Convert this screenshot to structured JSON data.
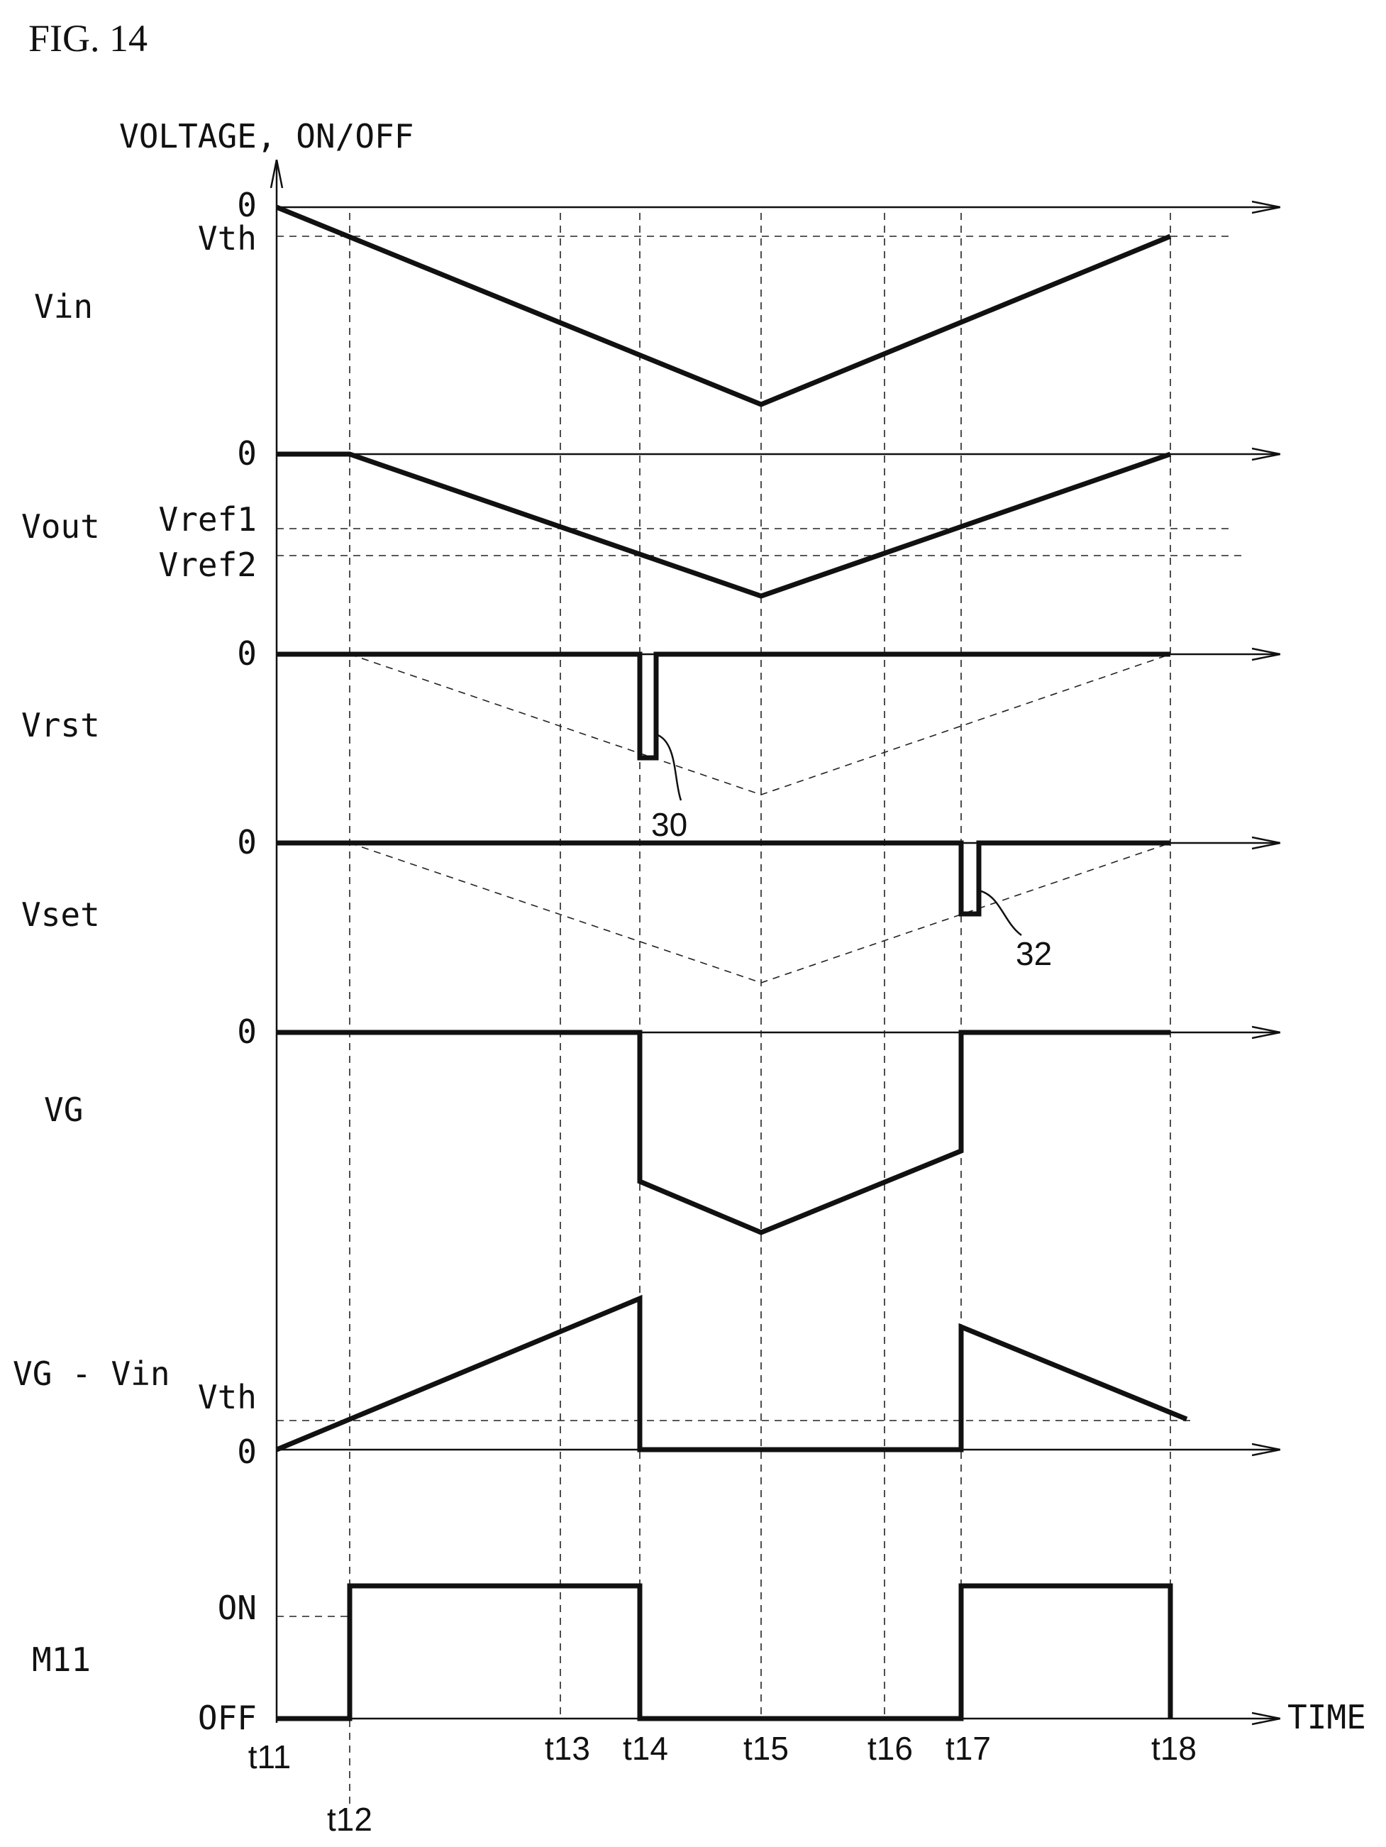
{
  "figure_title": "FIG. 14",
  "y_axis_label": "VOLTAGE, ON/OFF",
  "x_axis_label": "TIME",
  "signals": {
    "vin": "Vin",
    "vout": "Vout",
    "vrst": "Vrst",
    "vset": "Vset",
    "vg": "VG",
    "vgvin": "VG - Vin",
    "m11": "M11"
  },
  "levels": {
    "vin_zero": "0",
    "vin_vth": "Vth",
    "vout_zero": "0",
    "vref1": "Vref1",
    "vref2": "Vref2",
    "vrst_zero": "0",
    "vset_zero": "0",
    "vg_zero": "0",
    "vgvin_vth": "Vth",
    "vgvin_zero": "0",
    "m11_on": "ON",
    "m11_off": "OFF"
  },
  "time_labels": {
    "t11": "t11",
    "t12": "t12",
    "t13": "t13",
    "t14": "t14",
    "t15": "t15",
    "t16": "t16",
    "t17": "t17",
    "t18": "t18"
  },
  "callouts": {
    "pulse_30": "30",
    "pulse_32": "32"
  }
}
